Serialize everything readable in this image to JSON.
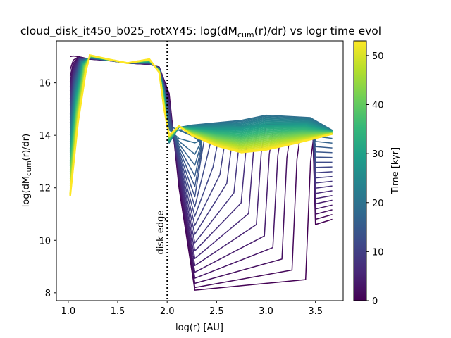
{
  "chart_data": {
    "type": "line",
    "title": "cloud_disk_it450_b025_rotXY45: log(dM_cum(r)/dr) vs logr time evol",
    "title_main": "cloud_disk_it450_b025_rotXY45: log(dM",
    "title_sub": "cum",
    "title_tail": "(r)/dr) vs logr time evol",
    "xlabel": "log(r) [AU]",
    "ylabel_main": "log(dM",
    "ylabel_sub": "cum",
    "ylabel_tail": "(r)/dr)",
    "xlim": [
      0.88,
      3.78
    ],
    "ylim": [
      7.7,
      17.6
    ],
    "xticks": [
      "1.0",
      "1.5",
      "2.0",
      "2.5",
      "3.0",
      "3.5"
    ],
    "xtick_values": [
      1.0,
      1.5,
      2.0,
      2.5,
      3.0,
      3.5
    ],
    "yticks": [
      "8",
      "10",
      "12",
      "14",
      "16"
    ],
    "ytick_values": [
      8,
      10,
      12,
      14,
      16
    ],
    "grid": false,
    "colorbar": {
      "label": "Time [kyr]",
      "min": 0,
      "max": 53,
      "ticks": [
        "0",
        "10",
        "20",
        "30",
        "40",
        "50"
      ],
      "tick_values": [
        0,
        10,
        20,
        30,
        40,
        50
      ],
      "colormap": "viridis"
    },
    "annotation": {
      "label": "disk edge",
      "x": 2.0,
      "style": "dotted vertical line"
    },
    "series_count": 53,
    "series_summary": {
      "early_dip": {
        "x_range": [
          2.0,
          3.45
        ],
        "min_y": 8.1
      },
      "late_profile": {
        "peak_x": 1.22,
        "peak_y": 17.05,
        "plateau_y": 16.75,
        "outer_y": 13.4
      },
      "outer_rise": {
        "x": 3.48,
        "max_y": 14.5
      }
    },
    "colors": {
      "viridis": [
        "#440154",
        "#482878",
        "#3e4989",
        "#31688e",
        "#26828e",
        "#1f9e89",
        "#35b779",
        "#6ece58",
        "#b5de2b",
        "#fde725"
      ]
    }
  }
}
